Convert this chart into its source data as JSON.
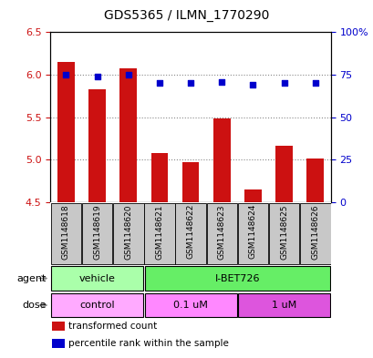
{
  "title": "GDS5365 / ILMN_1770290",
  "samples": [
    "GSM1148618",
    "GSM1148619",
    "GSM1148620",
    "GSM1148621",
    "GSM1148622",
    "GSM1148623",
    "GSM1148624",
    "GSM1148625",
    "GSM1148626"
  ],
  "bar_values": [
    6.15,
    5.83,
    6.08,
    5.08,
    4.97,
    5.49,
    4.65,
    5.17,
    5.02
  ],
  "dot_values": [
    75,
    74,
    75,
    70,
    70,
    71,
    69,
    70,
    70
  ],
  "ylim_left": [
    4.5,
    6.5
  ],
  "ylim_right": [
    0,
    100
  ],
  "yticks_left": [
    4.5,
    5.0,
    5.5,
    6.0,
    6.5
  ],
  "yticks_right": [
    0,
    25,
    50,
    75,
    100
  ],
  "bar_color": "#cc1111",
  "dot_color": "#0000cc",
  "bar_bottom": 4.5,
  "agent_vehicle_label": "vehicle",
  "agent_ibet_label": "I-BET726",
  "dose_control_label": "control",
  "dose_01_label": "0.1 uM",
  "dose_1_label": "1 uM",
  "agent_row_label": "agent",
  "dose_row_label": "dose",
  "vehicle_color": "#aaffaa",
  "ibet_color": "#66ee66",
  "control_color": "#ffaaff",
  "dose01_color": "#ff88ff",
  "dose1_color": "#dd55dd",
  "legend_red_label": "transformed count",
  "legend_blue_label": "percentile rank within the sample",
  "bg_color": "#ffffff",
  "plot_bg_color": "#ffffff",
  "tick_label_color_left": "#cc1111",
  "tick_label_color_right": "#0000cc",
  "grid_color": "#888888",
  "sample_bg_color": "#c8c8c8",
  "grid_yticks": [
    5.0,
    5.5,
    6.0
  ]
}
